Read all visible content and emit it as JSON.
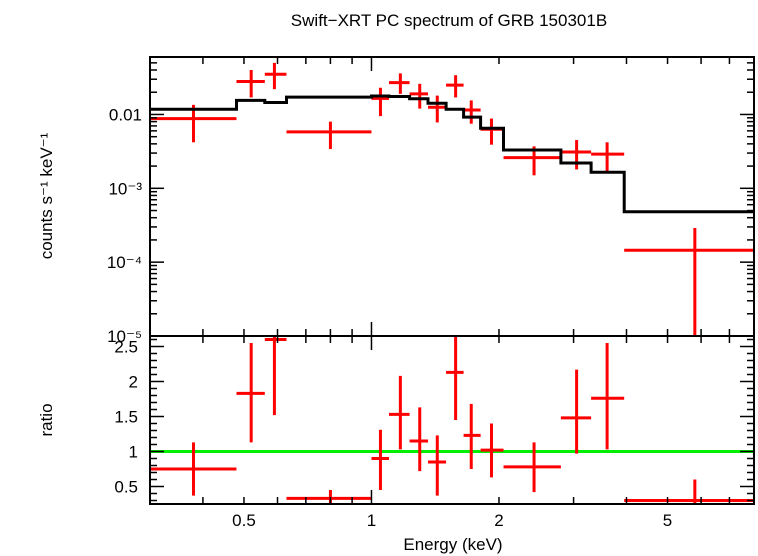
{
  "chart_data": [
    {
      "type": "scatter",
      "title": "Swift−XRT PC spectrum of GRB 150301B",
      "ylabel": "counts s⁻¹ keV⁻¹",
      "xscale": "log",
      "yscale": "log",
      "xlim": [
        0.3,
        8.0
      ],
      "ylim": [
        1e-05,
        0.06
      ],
      "y_tick_labels": [
        "0.01",
        "10⁻³",
        "10⁻⁴",
        "10⁻⁵"
      ],
      "y_tick_values": [
        0.01,
        0.001,
        0.0001,
        1e-05
      ],
      "series": [
        {
          "kind": "data-crosses",
          "color": "#ff0000",
          "points": [
            {
              "x": 0.38,
              "xlo": 0.3,
              "xhi": 0.48,
              "y": 0.0088,
              "ylo": 0.0042,
              "yhi": 0.0135
            },
            {
              "x": 0.52,
              "xlo": 0.48,
              "xhi": 0.56,
              "y": 0.028,
              "ylo": 0.017,
              "yhi": 0.04
            },
            {
              "x": 0.59,
              "xlo": 0.56,
              "xhi": 0.63,
              "y": 0.035,
              "ylo": 0.022,
              "yhi": 0.05
            },
            {
              "x": 0.8,
              "xlo": 0.63,
              "xhi": 1.0,
              "y": 0.0058,
              "ylo": 0.0034,
              "yhi": 0.008
            },
            {
              "x": 1.05,
              "xlo": 1.0,
              "xhi": 1.1,
              "y": 0.0165,
              "ylo": 0.0095,
              "yhi": 0.023
            },
            {
              "x": 1.17,
              "xlo": 1.1,
              "xhi": 1.23,
              "y": 0.027,
              "ylo": 0.019,
              "yhi": 0.036
            },
            {
              "x": 1.3,
              "xlo": 1.23,
              "xhi": 1.36,
              "y": 0.019,
              "ylo": 0.012,
              "yhi": 0.026
            },
            {
              "x": 1.43,
              "xlo": 1.36,
              "xhi": 1.5,
              "y": 0.0125,
              "ylo": 0.0078,
              "yhi": 0.018
            },
            {
              "x": 1.58,
              "xlo": 1.5,
              "xhi": 1.65,
              "y": 0.025,
              "ylo": 0.017,
              "yhi": 0.034
            },
            {
              "x": 1.72,
              "xlo": 1.65,
              "xhi": 1.81,
              "y": 0.0115,
              "ylo": 0.0075,
              "yhi": 0.0155
            },
            {
              "x": 1.92,
              "xlo": 1.81,
              "xhi": 2.05,
              "y": 0.0063,
              "ylo": 0.0039,
              "yhi": 0.0088
            },
            {
              "x": 2.42,
              "xlo": 2.05,
              "xhi": 2.8,
              "y": 0.0026,
              "ylo": 0.0015,
              "yhi": 0.0037
            },
            {
              "x": 3.05,
              "xlo": 2.8,
              "xhi": 3.3,
              "y": 0.0031,
              "ylo": 0.0018,
              "yhi": 0.0045
            },
            {
              "x": 3.6,
              "xlo": 3.3,
              "xhi": 3.95,
              "y": 0.0029,
              "ylo": 0.0017,
              "yhi": 0.0042
            },
            {
              "x": 5.8,
              "xlo": 3.95,
              "xhi": 8.0,
              "y": 0.000145,
              "ylo": 1e-05,
              "yhi": 0.00029
            }
          ]
        },
        {
          "kind": "model-step",
          "color": "#000000",
          "edges": [
            0.3,
            0.48,
            0.56,
            0.63,
            1.0,
            1.1,
            1.23,
            1.36,
            1.5,
            1.65,
            1.81,
            2.05,
            2.8,
            3.3,
            3.95,
            8.0
          ],
          "values": [
            0.0118,
            0.0155,
            0.0145,
            0.0172,
            0.0178,
            0.0175,
            0.0163,
            0.0142,
            0.0118,
            0.0092,
            0.0065,
            0.0033,
            0.0022,
            0.00165,
            0.00048
          ]
        }
      ]
    },
    {
      "type": "scatter",
      "xlabel": "Energy (keV)",
      "ylabel": "ratio",
      "xscale": "log",
      "xlim": [
        0.3,
        8.0
      ],
      "ylim": [
        0.25,
        2.65
      ],
      "y_ticks": [
        0.5,
        1,
        1.5,
        2,
        2.5
      ],
      "y_tick_labels": [
        "0.5",
        "1",
        "1.5",
        "2",
        "2.5"
      ],
      "x_ticks": [
        0.5,
        1,
        2,
        5
      ],
      "x_tick_labels": [
        "0.5",
        "1",
        "2",
        "5"
      ],
      "reference_line": {
        "y": 1,
        "color": "#00ee00"
      },
      "series": [
        {
          "kind": "ratio-crosses",
          "color": "#ff0000",
          "points": [
            {
              "x": 0.38,
              "xlo": 0.3,
              "xhi": 0.48,
              "y": 0.75,
              "ylo": 0.37,
              "yhi": 1.13
            },
            {
              "x": 0.52,
              "xlo": 0.48,
              "xhi": 0.56,
              "y": 1.83,
              "ylo": 1.13,
              "yhi": 2.55
            },
            {
              "x": 0.59,
              "xlo": 0.56,
              "xhi": 0.63,
              "y": 2.6,
              "ylo": 1.52,
              "yhi": 2.65
            },
            {
              "x": 0.8,
              "xlo": 0.63,
              "xhi": 1.0,
              "y": 0.33,
              "ylo": 0.25,
              "yhi": 0.45
            },
            {
              "x": 1.05,
              "xlo": 1.0,
              "xhi": 1.1,
              "y": 0.9,
              "ylo": 0.45,
              "yhi": 1.31
            },
            {
              "x": 1.17,
              "xlo": 1.1,
              "xhi": 1.23,
              "y": 1.53,
              "ylo": 1.03,
              "yhi": 2.08
            },
            {
              "x": 1.3,
              "xlo": 1.23,
              "xhi": 1.36,
              "y": 1.15,
              "ylo": 0.72,
              "yhi": 1.63
            },
            {
              "x": 1.43,
              "xlo": 1.36,
              "xhi": 1.5,
              "y": 0.85,
              "ylo": 0.37,
              "yhi": 1.23
            },
            {
              "x": 1.58,
              "xlo": 1.5,
              "xhi": 1.65,
              "y": 2.13,
              "ylo": 1.45,
              "yhi": 2.65
            },
            {
              "x": 1.72,
              "xlo": 1.65,
              "xhi": 1.81,
              "y": 1.23,
              "ylo": 0.75,
              "yhi": 1.68
            },
            {
              "x": 1.92,
              "xlo": 1.81,
              "xhi": 2.05,
              "y": 1.02,
              "ylo": 0.63,
              "yhi": 1.4
            },
            {
              "x": 2.42,
              "xlo": 2.05,
              "xhi": 2.8,
              "y": 0.78,
              "ylo": 0.42,
              "yhi": 1.13
            },
            {
              "x": 3.05,
              "xlo": 2.8,
              "xhi": 3.3,
              "y": 1.48,
              "ylo": 0.97,
              "yhi": 2.17
            },
            {
              "x": 3.6,
              "xlo": 3.3,
              "xhi": 3.95,
              "y": 1.76,
              "ylo": 1.03,
              "yhi": 2.55
            },
            {
              "x": 5.8,
              "xlo": 3.95,
              "xhi": 8.0,
              "y": 0.3,
              "ylo": 0.25,
              "yhi": 0.6
            }
          ]
        }
      ]
    }
  ]
}
